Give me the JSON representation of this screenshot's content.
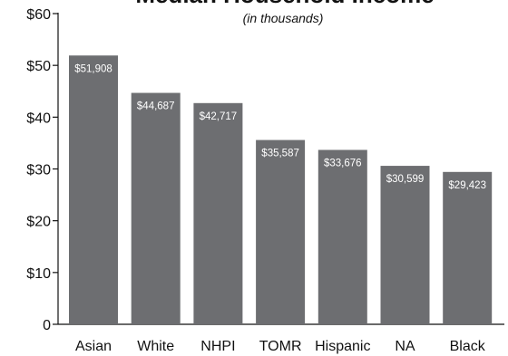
{
  "chart_data": {
    "type": "bar",
    "title": "Median Household Income",
    "subtitle": "(in thousands)",
    "categories": [
      "Asian",
      "White",
      "NHPI",
      "TOMR",
      "Hispanic",
      "NA",
      "Black"
    ],
    "values": [
      51.908,
      44.687,
      42.717,
      35.587,
      33.676,
      30.599,
      29.423
    ],
    "data_labels": [
      "$51,908",
      "$44,687",
      "$42,717",
      "$35,587",
      "$33,676",
      "$30,599",
      "$29,423"
    ],
    "y_ticks": [
      "0",
      "$10",
      "$20",
      "$30",
      "$40",
      "$50",
      "$60"
    ],
    "ylim": [
      0,
      60
    ],
    "xlabel": "",
    "ylabel": "",
    "grid": false,
    "legend": "none",
    "bar_color": "#6d6e71"
  }
}
